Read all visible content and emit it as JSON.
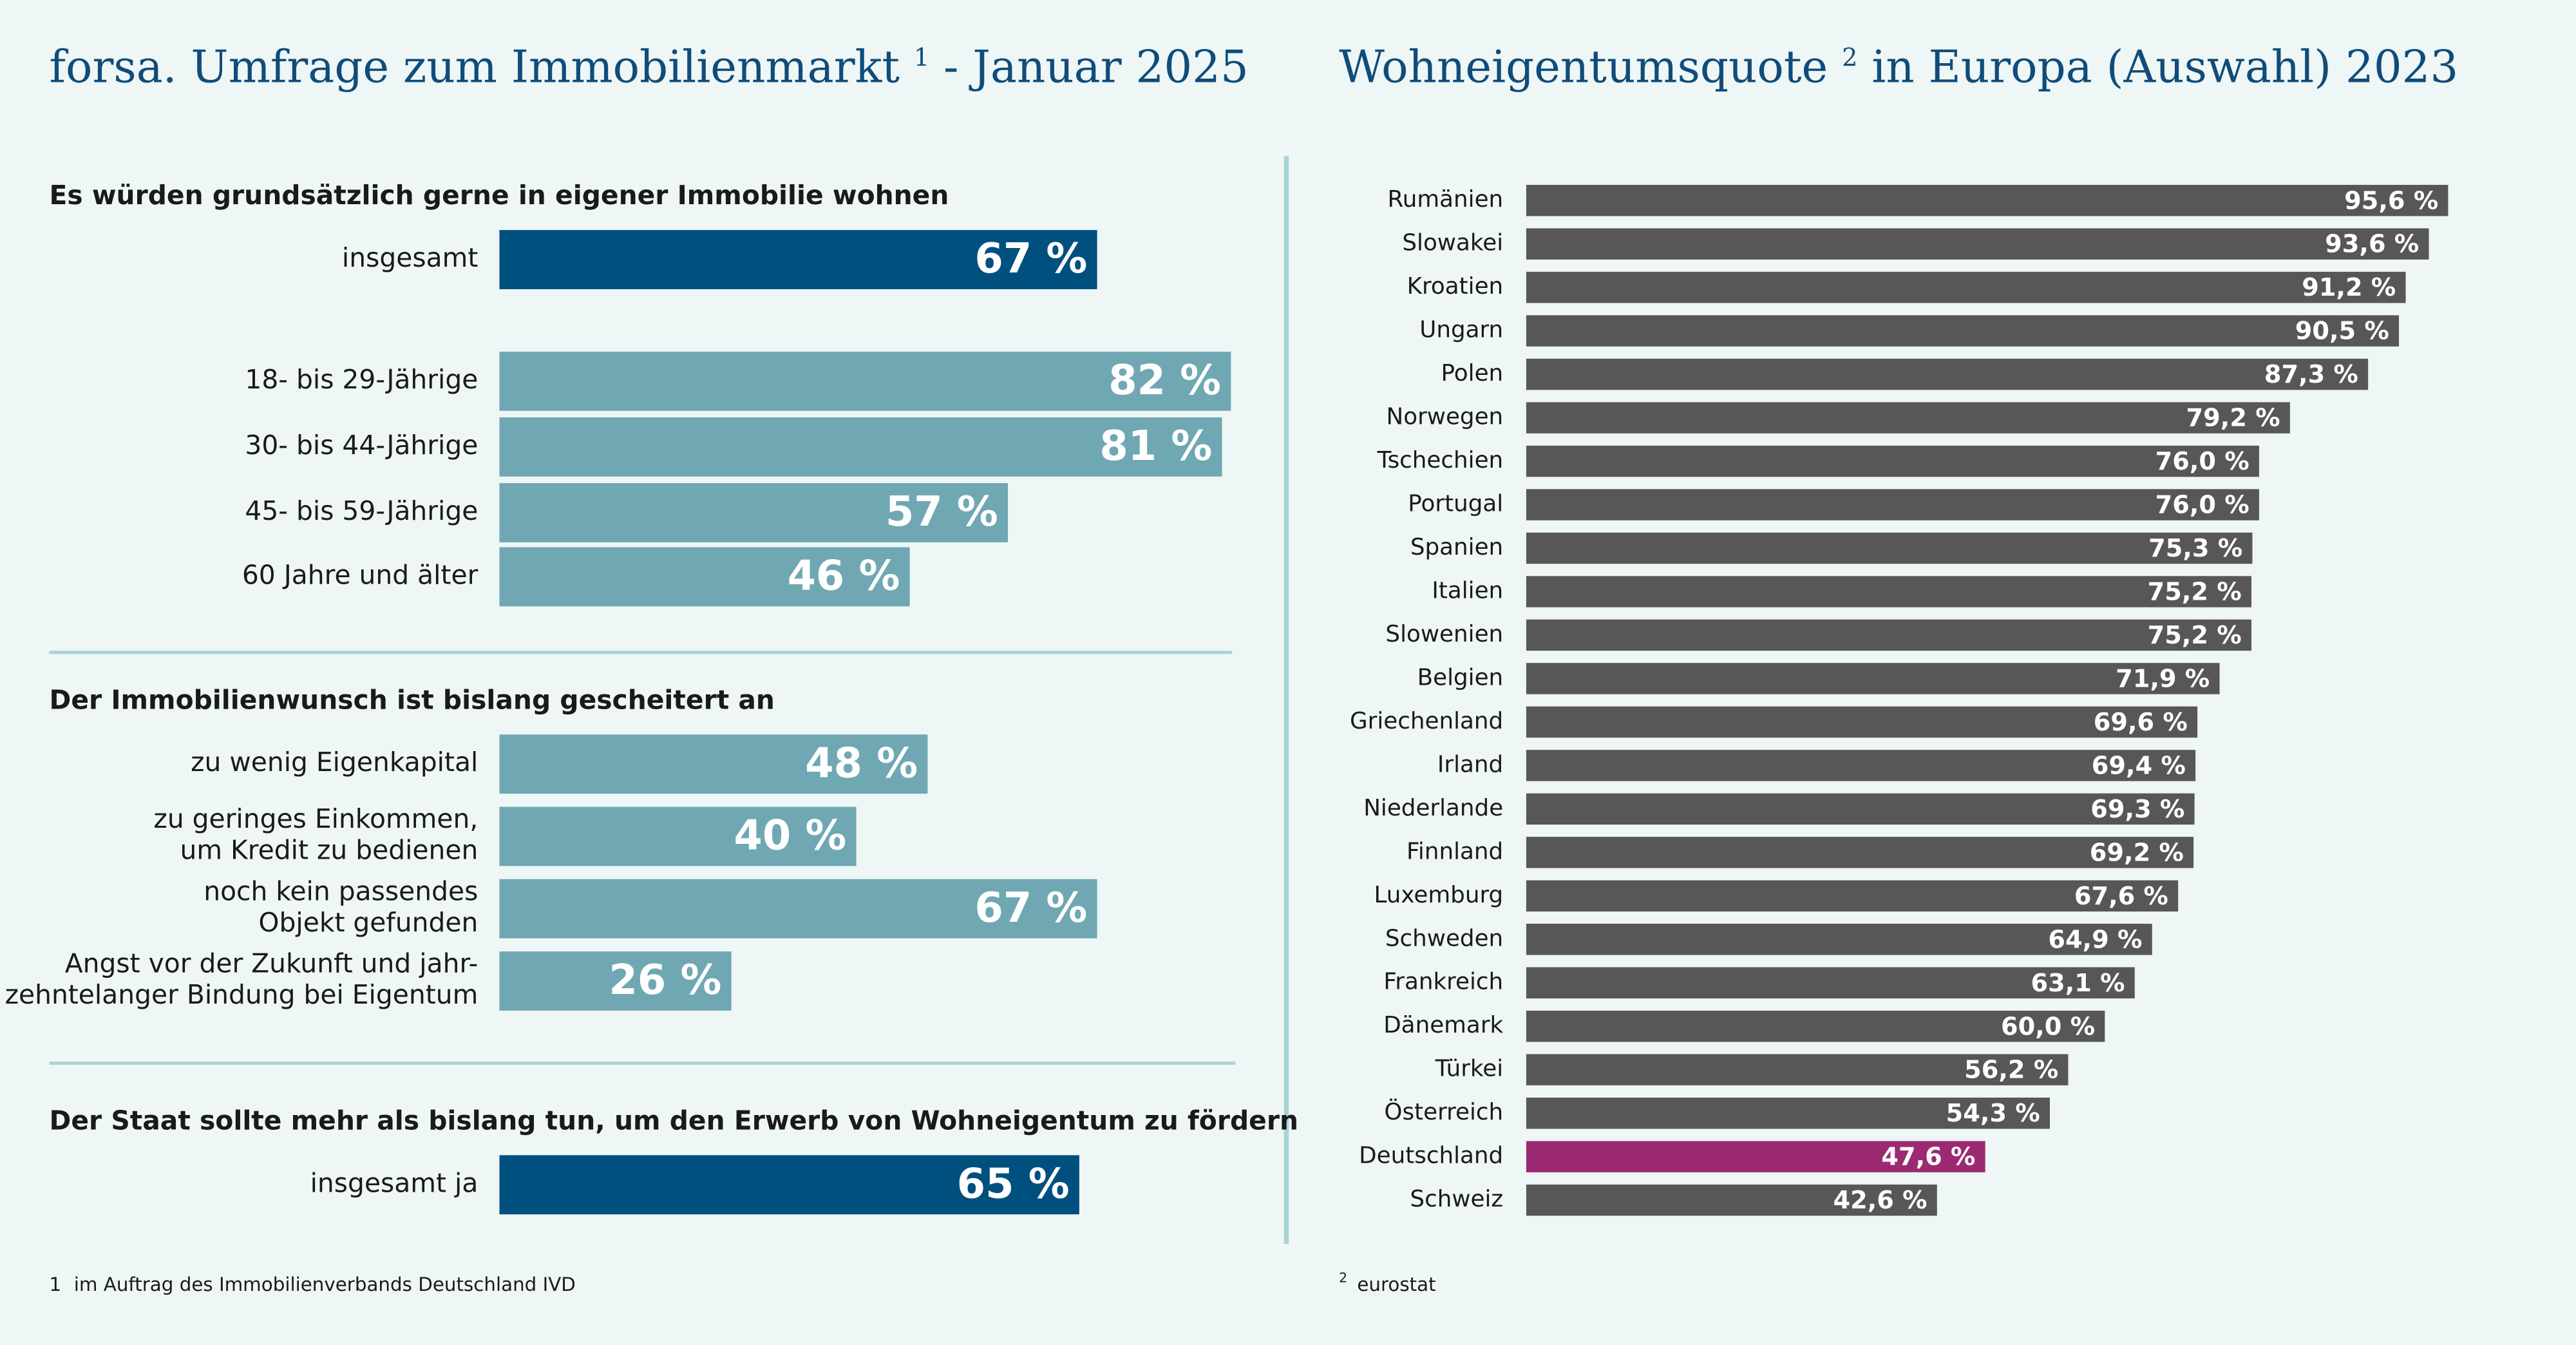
{
  "headers": [
    {
      "text": "forsa. Umfrage zum Immobilienmarkt",
      "note": "1",
      "suffix": "- Januar 2025"
    },
    {
      "text": "Wohneigentumsquote",
      "note": "2",
      "suffix": "in Europa (Auswahl) 2023"
    }
  ],
  "footnotes": [
    {
      "mark": "1",
      "text": "im Auftrag des Immobilienverbands Deutschland IVD"
    },
    {
      "mark": "2",
      "text": "eurostat"
    }
  ],
  "chart_data": [
    {
      "type": "bar",
      "orientation": "horizontal",
      "subtitle": "Es würden grundsätzlich gerne in eigener Immobilie wohnen",
      "categories": [
        [
          "insgesamt"
        ],
        [
          "18- bis 29-Jährige"
        ],
        [
          "30- bis 44-Jährige"
        ],
        [
          "45- bis 59-Jährige"
        ],
        [
          "60 Jahre und älter"
        ]
      ],
      "values": [
        67,
        82,
        81,
        57,
        46
      ],
      "value_labels": [
        "67 %",
        "82 %",
        "81 %",
        "57 %",
        "46 %"
      ],
      "colors": [
        "#00507f",
        "#6fa8b3",
        "#6fa8b3",
        "#6fa8b3",
        "#6fa8b3"
      ]
    },
    {
      "type": "bar",
      "orientation": "horizontal",
      "subtitle": "Der Immobilienwunsch ist bislang gescheitert an",
      "categories": [
        [
          "zu wenig Eigenkapital"
        ],
        [
          "zu geringes Einkommen,",
          "um Kredit zu bedienen"
        ],
        [
          "noch kein passendes",
          "Objekt gefunden"
        ],
        [
          "Angst vor der Zukunft und jahr-",
          "zehntelanger Bindung bei Eigentum"
        ]
      ],
      "values": [
        48,
        40,
        67,
        26
      ],
      "value_labels": [
        "48 %",
        "40 %",
        "67 %",
        "26 %"
      ],
      "colors": [
        "#6fa8b3",
        "#6fa8b3",
        "#6fa8b3",
        "#6fa8b3"
      ]
    },
    {
      "type": "bar",
      "orientation": "horizontal",
      "subtitle": "Der Staat sollte mehr als bislang tun, um den Erwerb von Wohneigentum zu fördern",
      "categories": [
        [
          "insgesamt ja"
        ]
      ],
      "values": [
        65
      ],
      "value_labels": [
        "65 %"
      ],
      "colors": [
        "#00507f"
      ]
    },
    {
      "type": "bar",
      "orientation": "horizontal",
      "categories": [
        [
          "Rumänien"
        ],
        [
          "Slowakei"
        ],
        [
          "Kroatien"
        ],
        [
          "Ungarn"
        ],
        [
          "Polen"
        ],
        [
          "Norwegen"
        ],
        [
          "Tschechien"
        ],
        [
          "Portugal"
        ],
        [
          "Spanien"
        ],
        [
          "Italien"
        ],
        [
          "Slowenien"
        ],
        [
          "Belgien"
        ],
        [
          "Griechenland"
        ],
        [
          "Irland"
        ],
        [
          "Niederlande"
        ],
        [
          "Finnland"
        ],
        [
          "Luxemburg"
        ],
        [
          "Schweden"
        ],
        [
          "Frankreich"
        ],
        [
          "Dänemark"
        ],
        [
          "Türkei"
        ],
        [
          "Österreich"
        ],
        [
          "Deutschland"
        ],
        [
          "Schweiz"
        ]
      ],
      "values": [
        95.6,
        93.6,
        91.2,
        90.5,
        87.3,
        79.2,
        76.0,
        76.0,
        75.3,
        75.2,
        75.2,
        71.9,
        69.6,
        69.4,
        69.3,
        69.2,
        67.6,
        64.9,
        63.1,
        60.0,
        56.2,
        54.3,
        47.6,
        42.6
      ],
      "value_labels": [
        "95,6 %",
        "93,6 %",
        "91,2 %",
        "90,5 %",
        "87,3 %",
        "79,2 %",
        "76,0 %",
        "76,0 %",
        "75,3 %",
        "75,2 %",
        "75,2 %",
        "71,9 %",
        "69,6 %",
        "69,4 %",
        "69,3 %",
        "69,2 %",
        "67,6 %",
        "64,9 %",
        "63,1 %",
        "60,0 %",
        "56,2 %",
        "54,3 %",
        "47,6 %",
        "42,6 %"
      ],
      "colors": [
        "#575756",
        "#575756",
        "#575756",
        "#575756",
        "#575756",
        "#575756",
        "#575756",
        "#575756",
        "#575756",
        "#575756",
        "#575756",
        "#575756",
        "#575756",
        "#575756",
        "#575756",
        "#575756",
        "#575756",
        "#575756",
        "#575756",
        "#575756",
        "#575756",
        "#575756",
        "#9b2a72",
        "#575756"
      ]
    }
  ]
}
